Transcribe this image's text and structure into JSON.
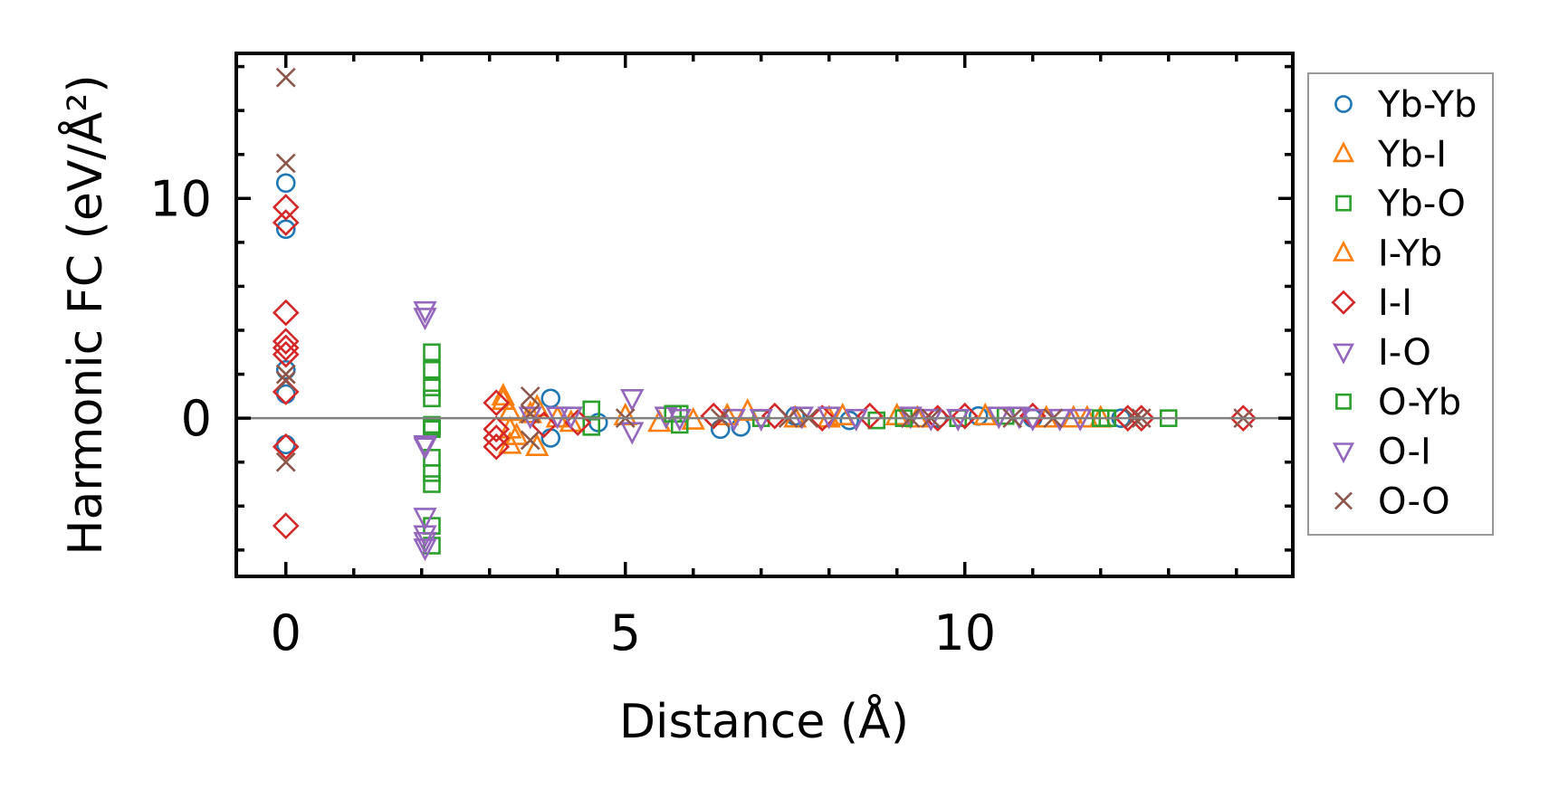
{
  "chart_data": {
    "type": "scatter",
    "title": "",
    "xlabel": "Distance (Å)",
    "ylabel": "Harmonic FC (eV/Å²)",
    "xlim": [
      -0.73,
      14.83
    ],
    "ylim": [
      -7.2,
      16.6
    ],
    "xticks": [
      0,
      5,
      10
    ],
    "xtick_labels": [
      "0",
      "5",
      "10"
    ],
    "yticks": [
      0,
      10
    ],
    "ytick_labels": [
      "0",
      "10"
    ],
    "x_minor_step": 1,
    "y_minor_step": 2,
    "zero_line": true,
    "zero_line_color": "#808080",
    "grid": false,
    "legend_position": "outside-right",
    "series": [
      {
        "name": "Yb-Yb",
        "marker": "circle",
        "color": "#1f77b4",
        "points": [
          [
            0,
            10.7
          ],
          [
            0,
            8.6
          ],
          [
            0,
            2.2
          ],
          [
            0,
            1.1
          ],
          [
            0,
            -1.2
          ],
          [
            3.9,
            0.9
          ],
          [
            3.9,
            -0.9
          ],
          [
            4.6,
            -0.2
          ],
          [
            6.4,
            -0.5
          ],
          [
            6.7,
            -0.4
          ],
          [
            7.5,
            0.1
          ],
          [
            8.3,
            -0.1
          ],
          [
            9.6,
            0
          ],
          [
            10.2,
            0.1
          ],
          [
            11.0,
            0
          ],
          [
            12.3,
            0
          ]
        ]
      },
      {
        "name": "Yb-I",
        "marker": "triangle-up",
        "color": "#ff7f0e",
        "points": [
          [
            3.2,
            0.8
          ],
          [
            3.3,
            0.3
          ],
          [
            3.3,
            -0.5
          ],
          [
            3.3,
            -1.2
          ],
          [
            3.7,
            0.5
          ],
          [
            3.7,
            -1.3
          ],
          [
            4.2,
            -0.2
          ],
          [
            5.0,
            0.1
          ],
          [
            6.0,
            -0.1
          ],
          [
            6.8,
            0.3
          ],
          [
            7.5,
            0
          ],
          [
            8.2,
            0.1
          ],
          [
            9.3,
            0
          ],
          [
            10.3,
            0.1
          ],
          [
            11.2,
            0
          ],
          [
            11.8,
            0
          ],
          [
            12.0,
            0
          ]
        ]
      },
      {
        "name": "Yb-O",
        "marker": "square",
        "color": "#2ca02c",
        "points": [
          [
            2.15,
            3.0
          ],
          [
            2.15,
            2.2
          ],
          [
            2.15,
            1.4
          ],
          [
            2.15,
            0.9
          ],
          [
            2.15,
            -0.3
          ],
          [
            2.15,
            -0.5
          ],
          [
            2.15,
            -1.8
          ],
          [
            2.15,
            -2.5
          ],
          [
            2.15,
            -3.0
          ],
          [
            2.15,
            -4.9
          ],
          [
            2.15,
            -5.8
          ],
          [
            4.5,
            0.4
          ],
          [
            4.5,
            -0.4
          ],
          [
            5.8,
            0.2
          ],
          [
            5.8,
            -0.3
          ],
          [
            7.0,
            0
          ],
          [
            8.7,
            -0.1
          ],
          [
            9.9,
            0
          ],
          [
            10.6,
            0.1
          ],
          [
            12.1,
            0
          ],
          [
            13.0,
            0
          ]
        ]
      },
      {
        "name": "I-Yb",
        "marker": "triangle-up",
        "color": "#ff7f0e",
        "points": [
          [
            3.2,
            1.0
          ],
          [
            3.4,
            -0.8
          ],
          [
            3.6,
            0.2
          ],
          [
            4.0,
            0
          ],
          [
            5.5,
            -0.2
          ],
          [
            6.5,
            0.1
          ],
          [
            8.0,
            0
          ],
          [
            9.0,
            0.1
          ],
          [
            11.6,
            0
          ]
        ]
      },
      {
        "name": "I-I",
        "marker": "diamond",
        "color": "#d62728",
        "points": [
          [
            0,
            9.6
          ],
          [
            0,
            8.9
          ],
          [
            0,
            4.8
          ],
          [
            0,
            3.5
          ],
          [
            0,
            3.2
          ],
          [
            0,
            2.9
          ],
          [
            0,
            1.2
          ],
          [
            0,
            -1.3
          ],
          [
            0,
            -4.9
          ],
          [
            3.1,
            0.7
          ],
          [
            3.1,
            -0.5
          ],
          [
            3.1,
            -0.9
          ],
          [
            3.1,
            -1.3
          ],
          [
            3.8,
            -0.3
          ],
          [
            4.3,
            -0.2
          ],
          [
            6.3,
            0.1
          ],
          [
            7.2,
            0.1
          ],
          [
            7.9,
            0
          ],
          [
            8.6,
            0.1
          ],
          [
            9.6,
            0
          ],
          [
            10.0,
            0.1
          ],
          [
            11.0,
            0.1
          ],
          [
            12.4,
            0
          ],
          [
            12.6,
            0
          ],
          [
            14.1,
            0
          ]
        ]
      },
      {
        "name": "I-O",
        "marker": "triangle-down",
        "color": "#9467bd",
        "points": [
          [
            2.05,
            4.9
          ],
          [
            2.05,
            4.6
          ],
          [
            2.05,
            -1.3
          ],
          [
            2.05,
            -4.5
          ],
          [
            2.05,
            -5.6
          ],
          [
            4.0,
            0.1
          ],
          [
            5.1,
            0.9
          ],
          [
            5.1,
            -0.6
          ],
          [
            5.6,
            0.1
          ],
          [
            6.6,
            0
          ],
          [
            7.6,
            0.1
          ],
          [
            8.4,
            0
          ],
          [
            9.2,
            0.1
          ],
          [
            9.9,
            0
          ],
          [
            10.8,
            0.1
          ],
          [
            11.4,
            0
          ]
        ]
      },
      {
        "name": "O-Yb",
        "marker": "square",
        "color": "#2ca02c",
        "points": [
          [
            2.15,
            -0.4
          ],
          [
            5.7,
            0.2
          ],
          [
            9.1,
            0
          ],
          [
            12.0,
            0
          ]
        ]
      },
      {
        "name": "O-I",
        "marker": "triangle-down",
        "color": "#9467bd",
        "points": [
          [
            2.05,
            -1.2
          ],
          [
            2.05,
            -5.3
          ],
          [
            2.05,
            -5.9
          ],
          [
            3.6,
            0.1
          ],
          [
            4.2,
            0.1
          ],
          [
            5.8,
            0
          ],
          [
            7.0,
            0
          ],
          [
            8.0,
            0.1
          ],
          [
            9.5,
            0
          ],
          [
            10.5,
            0.1
          ],
          [
            11.0,
            0
          ],
          [
            11.7,
            0
          ]
        ]
      },
      {
        "name": "O-O",
        "marker": "x",
        "color": "#8c564b",
        "points": [
          [
            0,
            15.5
          ],
          [
            0,
            11.6
          ],
          [
            0,
            2.0
          ],
          [
            0,
            1.7
          ],
          [
            0,
            -2.0
          ],
          [
            3.6,
            1.0
          ],
          [
            3.6,
            -1.0
          ],
          [
            3.6,
            0.2
          ],
          [
            5.0,
            0
          ],
          [
            6.4,
            0
          ],
          [
            7.4,
            0
          ],
          [
            7.7,
            0
          ],
          [
            9.2,
            0
          ],
          [
            9.5,
            0
          ],
          [
            10.7,
            0
          ],
          [
            11.3,
            0
          ],
          [
            12.5,
            0
          ],
          [
            12.6,
            0
          ],
          [
            14.1,
            0
          ]
        ]
      }
    ]
  }
}
